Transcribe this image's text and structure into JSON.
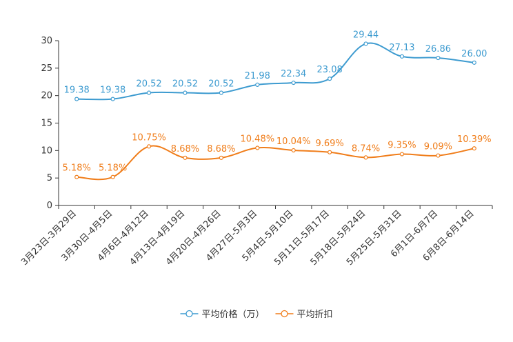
{
  "chart_data": {
    "type": "line",
    "title": "",
    "xlabel": "",
    "ylabel": "",
    "ylim": [
      0,
      30
    ],
    "yticks": [
      0,
      5,
      10,
      15,
      20,
      25,
      30
    ],
    "grid": false,
    "legend_position": "bottom-center",
    "categories": [
      "3月23日-3月29日",
      "3月30日-4月5日",
      "4月6日-4月12日",
      "4月13日-4月19日",
      "4月20日-4月26日",
      "4月27日-5月3日",
      "5月4日-5月10日",
      "5月11日-5月17日",
      "5月18日-5月24日",
      "5月25日-5月31日",
      "6月1日-6月7日",
      "6月8日-6月14日"
    ],
    "series": [
      {
        "name": "平均价格（万）",
        "color": "#3d9bd0",
        "values": [
          19.38,
          19.38,
          20.52,
          20.52,
          20.52,
          21.98,
          22.34,
          23.08,
          29.44,
          27.13,
          26.86,
          26.0
        ],
        "labels": [
          "19.38",
          "19.38",
          "20.52",
          "20.52",
          "20.52",
          "21.98",
          "22.34",
          "23.08",
          "29.44",
          "27.13",
          "26.86",
          "26.00"
        ]
      },
      {
        "name": "平均折扣",
        "color": "#f07d1a",
        "values": [
          5.18,
          5.18,
          10.75,
          8.68,
          8.68,
          10.48,
          10.04,
          9.69,
          8.74,
          9.35,
          9.09,
          10.39
        ],
        "labels": [
          "5.18%",
          "5.18%",
          "10.75%",
          "8.68%",
          "8.68%",
          "10.48%",
          "10.04%",
          "9.69%",
          "8.74%",
          "9.35%",
          "9.09%",
          "10.39%"
        ]
      }
    ]
  }
}
